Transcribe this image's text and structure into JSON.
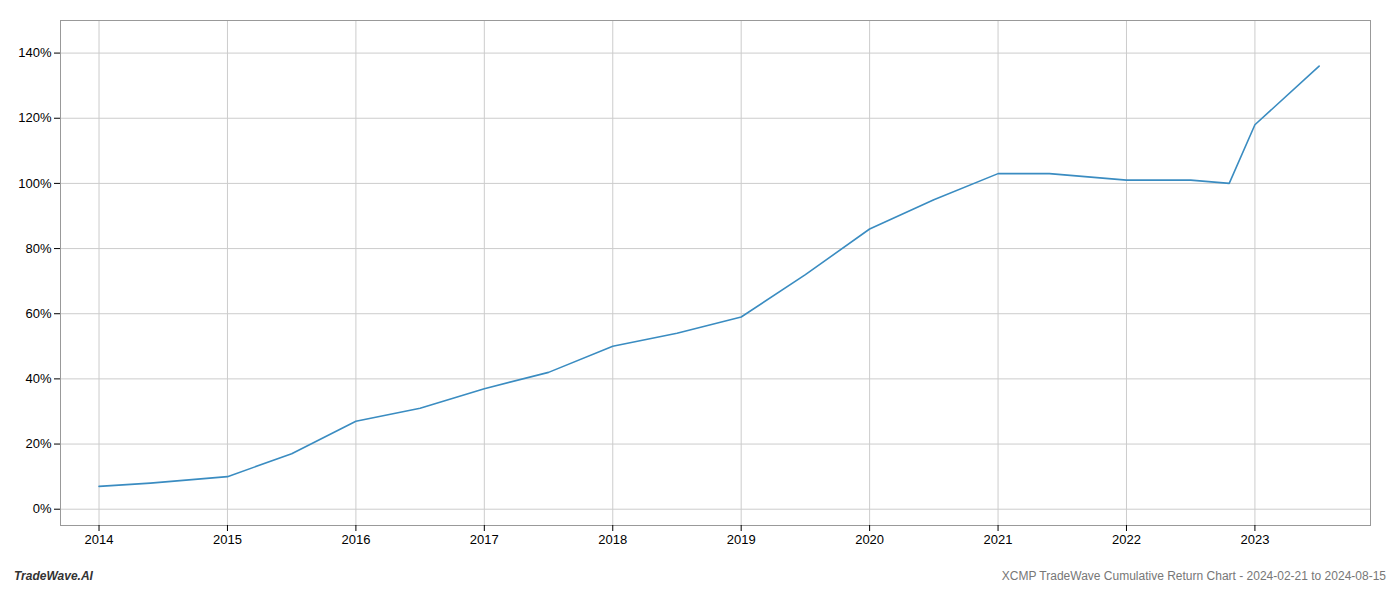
{
  "chart_data": {
    "type": "line",
    "x": [
      2014.0,
      2014.4,
      2015.0,
      2015.5,
      2016.0,
      2016.5,
      2017.0,
      2017.5,
      2018.0,
      2018.5,
      2019.0,
      2019.5,
      2020.0,
      2020.5,
      2021.0,
      2021.4,
      2022.0,
      2022.5,
      2022.8,
      2023.0,
      2023.5
    ],
    "values": [
      7,
      8,
      10,
      17,
      27,
      31,
      37,
      42,
      50,
      54,
      59,
      72,
      86,
      95,
      103,
      103,
      101,
      101,
      100,
      118,
      136
    ],
    "color": "#3a8cc1",
    "xlim": [
      2013.7,
      2023.9
    ],
    "ylim": [
      -5,
      150
    ],
    "xticks": [
      2014,
      2015,
      2016,
      2017,
      2018,
      2019,
      2020,
      2021,
      2022,
      2023
    ],
    "yticks": [
      {
        "value": 0,
        "label": "0%"
      },
      {
        "value": 20,
        "label": "20%"
      },
      {
        "value": 40,
        "label": "40%"
      },
      {
        "value": 60,
        "label": "60%"
      },
      {
        "value": 80,
        "label": "80%"
      },
      {
        "value": 100,
        "label": "100%"
      },
      {
        "value": 120,
        "label": "120%"
      },
      {
        "value": 140,
        "label": "140%"
      }
    ],
    "grid": true,
    "annotations": [
      "TradeWave.AI",
      "XCMP TradeWave Cumulative Return Chart - 2024-02-21 to 2024-08-15"
    ]
  }
}
